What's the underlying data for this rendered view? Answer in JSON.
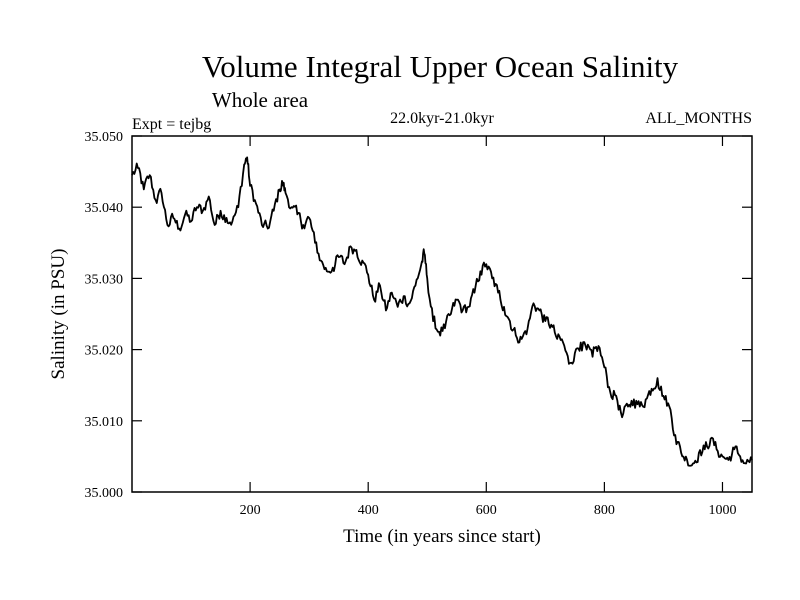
{
  "chart_data": {
    "type": "line",
    "title": "Volume Integral Upper Ocean Salinity",
    "subtitle": "Whole area",
    "experiment": "Expt = tejbg",
    "period": "22.0kyr-21.0kyr",
    "season": "ALL_MONTHS",
    "xlabel": "Time (in years since start)",
    "ylabel": "Salinity (in PSU)",
    "xlim": [
      0,
      1050
    ],
    "ylim": [
      35.0,
      35.05
    ],
    "x_ticks": [
      200,
      400,
      600,
      800,
      1000
    ],
    "x_tick_labels": [
      "200",
      "400",
      "600",
      "800",
      "1000"
    ],
    "y_ticks": [
      35.0,
      35.01,
      35.02,
      35.03,
      35.04,
      35.05
    ],
    "y_tick_labels": [
      "35.000",
      "35.010",
      "35.020",
      "35.030",
      "35.040",
      "35.050"
    ],
    "series": [
      {
        "name": "Salinity",
        "x": [
          0,
          10,
          20,
          30,
          40,
          50,
          60,
          70,
          80,
          90,
          100,
          110,
          120,
          130,
          140,
          150,
          160,
          170,
          180,
          190,
          195,
          200,
          210,
          220,
          230,
          240,
          250,
          255,
          260,
          270,
          280,
          290,
          300,
          310,
          320,
          330,
          340,
          350,
          360,
          370,
          380,
          390,
          400,
          410,
          420,
          430,
          440,
          450,
          460,
          470,
          480,
          490,
          495,
          500,
          510,
          520,
          530,
          540,
          550,
          560,
          570,
          580,
          590,
          600,
          610,
          620,
          630,
          640,
          650,
          660,
          670,
          680,
          690,
          700,
          710,
          720,
          730,
          740,
          750,
          760,
          770,
          780,
          790,
          800,
          810,
          820,
          830,
          840,
          850,
          860,
          870,
          880,
          890,
          900,
          910,
          920,
          930,
          940,
          950,
          960,
          970,
          980,
          990,
          1000,
          1010,
          1020,
          1030,
          1040,
          1050
        ],
        "values": [
          35.0445,
          35.0455,
          35.0425,
          35.0445,
          35.041,
          35.042,
          35.0375,
          35.0385,
          35.037,
          35.039,
          35.038,
          35.04,
          35.0395,
          35.0415,
          35.0375,
          35.0395,
          35.0385,
          35.038,
          35.04,
          35.046,
          35.047,
          35.043,
          35.0405,
          35.0375,
          35.037,
          35.0395,
          35.0425,
          35.0435,
          35.042,
          35.04,
          35.039,
          35.0375,
          35.0385,
          35.035,
          35.0325,
          35.031,
          35.0315,
          35.033,
          35.032,
          35.0345,
          35.034,
          35.0325,
          35.0305,
          35.027,
          35.029,
          35.0255,
          35.028,
          35.026,
          35.0275,
          35.0265,
          35.029,
          35.032,
          35.0335,
          35.03,
          35.024,
          35.0225,
          35.023,
          35.025,
          35.027,
          35.0255,
          35.026,
          35.028,
          35.031,
          35.032,
          35.03,
          35.028,
          35.026,
          35.024,
          35.022,
          35.0215,
          35.023,
          35.0265,
          35.0255,
          35.024,
          35.0235,
          35.0215,
          35.021,
          35.018,
          35.0195,
          35.021,
          35.02,
          35.019,
          35.0205,
          35.0175,
          35.014,
          35.0135,
          35.0105,
          35.012,
          35.013,
          35.012,
          35.013,
          35.0145,
          35.016,
          35.0135,
          35.012,
          35.008,
          35.0055,
          35.0045,
          35.004,
          35.0055,
          35.006,
          35.0075,
          35.006,
          35.005,
          35.0045,
          35.006,
          35.005,
          35.004,
          35.0045
        ]
      }
    ]
  }
}
